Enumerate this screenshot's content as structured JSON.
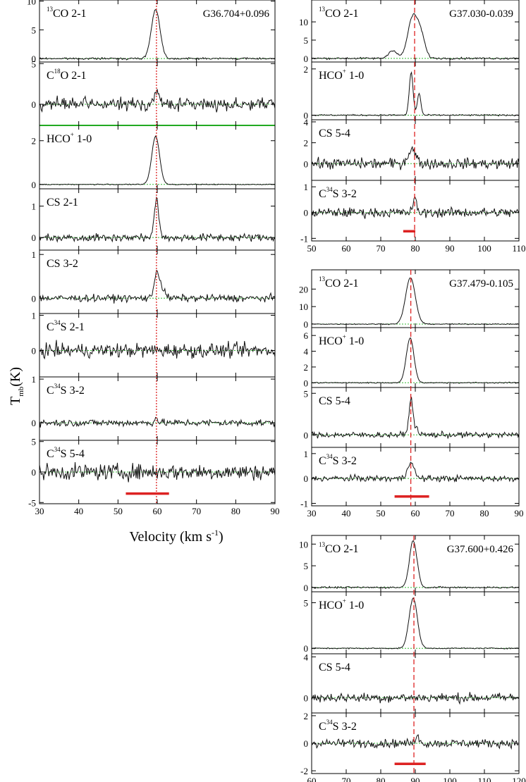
{
  "figure": {
    "ylabel": "T",
    "ylabel_sub": "mb",
    "ylabel_unit": "(K)",
    "xlabel_main": "Velocity (km s",
    "xlabel_sup": "-1",
    "xlabel_tail": ")"
  },
  "colors": {
    "spectrum": "#111111",
    "baseline": "#33bb33",
    "velocity_marker": "#dd2222",
    "range_bar": "#dd2222",
    "separator": "#22aa22"
  },
  "chart_data": [
    {
      "type": "line",
      "source": "G36.704+0.096",
      "x_range": [
        30,
        90
      ],
      "x_ticks": [
        30,
        40,
        50,
        60,
        70,
        80,
        90
      ],
      "v_marker": 59.8,
      "marker_style": "dotted",
      "range_bar": [
        52,
        63
      ],
      "panels": [
        {
          "species": "13CO",
          "pre": "",
          "sup": "13",
          "post": "CO 2-1",
          "ylim": [
            -0.6,
            10.2
          ],
          "yticks": [
            0,
            5,
            10
          ],
          "noise": 0.15,
          "peaks": [
            [
              59.6,
              8.6,
              1.1
            ]
          ]
        },
        {
          "species": "C18O",
          "pre": "C",
          "sup": "18",
          "post": "O 2-1",
          "ylim": [
            -2.6,
            5.2
          ],
          "yticks": [
            0,
            5
          ],
          "noise": 0.75,
          "peaks": [
            [
              59.8,
              1.6,
              0.6
            ]
          ]
        },
        {
          "species": "HCO+",
          "pre": "HCO",
          "sup": "+",
          "post": " 1-0",
          "ylim": [
            -0.2,
            2.7
          ],
          "yticks": [
            0,
            2
          ],
          "noise": 0.02,
          "peaks": [
            [
              59.6,
              2.2,
              1.0
            ]
          ]
        },
        {
          "species": "CS 2-1",
          "pre": "CS 2-1",
          "sup": "",
          "post": "",
          "ylim": [
            -0.4,
            1.55
          ],
          "yticks": [
            0,
            1
          ],
          "noise": 0.12,
          "peaks": [
            [
              59.8,
              1.15,
              0.6
            ]
          ]
        },
        {
          "species": "CS 3-2",
          "pre": "CS 3-2",
          "sup": "",
          "post": "",
          "ylim": [
            -0.35,
            1.1
          ],
          "yticks": [
            0,
            1
          ],
          "noise": 0.08,
          "peaks": [
            [
              59.8,
              0.55,
              0.6
            ],
            [
              61.0,
              0.25,
              0.8
            ]
          ]
        },
        {
          "species": "C34S 2-1",
          "pre": "C",
          "sup": "34",
          "post": "S 2-1",
          "ylim": [
            -0.75,
            1.05
          ],
          "yticks": [
            0,
            1
          ],
          "noise": 0.2,
          "peaks": []
        },
        {
          "species": "C34S 3-2",
          "pre": "C",
          "sup": "34",
          "post": "S 3-2",
          "ylim": [
            -0.4,
            1.05
          ],
          "yticks": [
            0,
            1
          ],
          "noise": 0.08,
          "peaks": [
            [
              59.8,
              0.12,
              0.4
            ]
          ]
        },
        {
          "species": "C34S 5-4",
          "pre": "C",
          "sup": "34",
          "post": "S 5-4",
          "ylim": [
            -5.2,
            5.2
          ],
          "yticks": [
            -5,
            0,
            5
          ],
          "noise": 1.3,
          "peaks": []
        }
      ]
    },
    {
      "type": "line",
      "source": "G37.030-0.039",
      "x_range": [
        50,
        110
      ],
      "x_ticks": [
        50,
        60,
        70,
        80,
        90,
        100,
        110
      ],
      "v_marker": 79.8,
      "marker_style": "dashed",
      "range_bar": [
        76.5,
        80
      ],
      "panels": [
        {
          "species": "13CO",
          "pre": "",
          "sup": "13",
          "post": "CO 2-1",
          "ylim": [
            -1,
            16
          ],
          "yticks": [
            0,
            5,
            10
          ],
          "noise": 0.25,
          "peaks": [
            [
              73.5,
              2.2,
              1.2
            ],
            [
              79.2,
              11,
              1.4
            ],
            [
              81.6,
              6,
              1.2
            ]
          ]
        },
        {
          "species": "HCO+",
          "pre": "HCO",
          "sup": "+",
          "post": " 1-0",
          "ylim": [
            -0.2,
            2.3
          ],
          "yticks": [
            0,
            2
          ],
          "noise": 0.03,
          "peaks": [
            [
              78.8,
              1.85,
              0.55
            ],
            [
              81.1,
              0.95,
              0.5
            ]
          ]
        },
        {
          "species": "CS 5-4",
          "pre": "CS 5-4",
          "sup": "",
          "post": "",
          "ylim": [
            -1.6,
            4.2
          ],
          "yticks": [
            0,
            2,
            4
          ],
          "noise": 0.5,
          "peaks": [
            [
              79.0,
              1.4,
              1.1
            ]
          ]
        },
        {
          "species": "C34S 3-2",
          "pre": "C",
          "sup": "34",
          "post": "S 3-2",
          "ylim": [
            -1.1,
            1.25
          ],
          "yticks": [
            -1,
            0,
            1
          ],
          "noise": 0.18,
          "peaks": [
            [
              79.8,
              0.55,
              0.5
            ]
          ]
        }
      ]
    },
    {
      "type": "line",
      "source": "G37.479-0.105",
      "x_range": [
        30,
        90
      ],
      "x_ticks": [
        30,
        40,
        50,
        60,
        70,
        80,
        90
      ],
      "v_marker": 58.7,
      "marker_style": "dashed",
      "range_bar": [
        54,
        64
      ],
      "panels": [
        {
          "species": "13CO",
          "pre": "",
          "sup": "13",
          "post": "CO 2-1",
          "ylim": [
            -2,
            31
          ],
          "yticks": [
            0,
            10,
            20
          ],
          "noise": 0.25,
          "peaks": [
            [
              58.6,
              26.5,
              1.4
            ]
          ]
        },
        {
          "species": "HCO+",
          "pre": "HCO",
          "sup": "+",
          "post": " 1-0",
          "ylim": [
            -0.6,
            7
          ],
          "yticks": [
            0,
            2,
            4,
            6
          ],
          "noise": 0.07,
          "peaks": [
            [
              58.5,
              5.7,
              1.1
            ]
          ]
        },
        {
          "species": "CS 5-4",
          "pre": "CS 5-4",
          "sup": "",
          "post": "",
          "ylim": [
            -1.5,
            5.7
          ],
          "yticks": [
            0,
            5
          ],
          "noise": 0.35,
          "peaks": [
            [
              58.7,
              3.6,
              0.55
            ],
            [
              59.5,
              1.0,
              1.0
            ]
          ]
        },
        {
          "species": "C34S 3-2",
          "pre": "C",
          "sup": "34",
          "post": "S 3-2",
          "ylim": [
            -1.1,
            1.25
          ],
          "yticks": [
            -1,
            0,
            1
          ],
          "noise": 0.12,
          "peaks": [
            [
              58.7,
              0.7,
              0.9
            ]
          ]
        }
      ]
    },
    {
      "type": "line",
      "source": "G37.600+0.426",
      "x_range": [
        60,
        120
      ],
      "x_ticks": [
        60,
        70,
        80,
        90,
        100,
        110,
        120
      ],
      "v_marker": 89.6,
      "marker_style": "dashed",
      "range_bar": [
        84,
        93
      ],
      "panels": [
        {
          "species": "13CO",
          "pre": "",
          "sup": "13",
          "post": "CO 2-1",
          "ylim": [
            -1,
            12
          ],
          "yticks": [
            0,
            5,
            10
          ],
          "noise": 0.2,
          "peaks": [
            [
              89.4,
              10.8,
              1.1
            ]
          ]
        },
        {
          "species": "HCO+",
          "pre": "HCO",
          "sup": "+",
          "post": " 1-0",
          "ylim": [
            -0.6,
            6.2
          ],
          "yticks": [
            0,
            5
          ],
          "noise": 0.06,
          "peaks": [
            [
              89.4,
              5.5,
              1.2
            ]
          ]
        },
        {
          "species": "CS 5-4",
          "pre": "CS 5-4",
          "sup": "",
          "post": "",
          "ylim": [
            -1.5,
            4.3
          ],
          "yticks": [
            0,
            4
          ],
          "noise": 0.45,
          "peaks": []
        },
        {
          "species": "C34S 3-2",
          "pre": "C",
          "sup": "34",
          "post": "S 3-2",
          "ylim": [
            -2.2,
            2.2
          ],
          "yticks": [
            -2,
            0,
            2
          ],
          "noise": 0.3,
          "peaks": [
            [
              90.6,
              0.8,
              0.4
            ]
          ]
        }
      ]
    }
  ]
}
